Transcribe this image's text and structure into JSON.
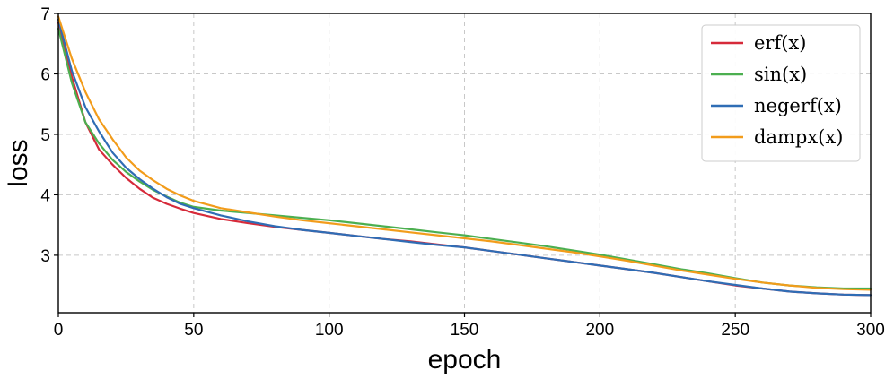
{
  "chart_data": {
    "type": "line",
    "xlabel": "epoch",
    "ylabel": "loss",
    "xlim": [
      0,
      300
    ],
    "ylim": [
      2.05,
      7
    ],
    "xticks": [
      0,
      50,
      100,
      150,
      200,
      250,
      300
    ],
    "yticks": [
      3,
      4,
      5,
      6,
      7
    ],
    "grid": true,
    "legend_position": "top-right",
    "x": [
      0,
      5,
      10,
      15,
      20,
      25,
      30,
      35,
      40,
      45,
      50,
      60,
      70,
      80,
      90,
      100,
      110,
      120,
      130,
      140,
      150,
      160,
      170,
      180,
      190,
      200,
      210,
      220,
      230,
      240,
      250,
      260,
      270,
      280,
      290,
      300
    ],
    "series": [
      {
        "name": "erf(x)",
        "color": "#d62a3a",
        "values": [
          6.85,
          5.95,
          5.2,
          4.75,
          4.5,
          4.28,
          4.1,
          3.95,
          3.85,
          3.77,
          3.7,
          3.6,
          3.53,
          3.47,
          3.42,
          3.37,
          3.32,
          3.27,
          3.23,
          3.18,
          3.13,
          3.07,
          3.01,
          2.95,
          2.89,
          2.83,
          2.77,
          2.71,
          2.64,
          2.57,
          2.5,
          2.45,
          2.4,
          2.37,
          2.35,
          2.34
        ]
      },
      {
        "name": "sin(x)",
        "color": "#4caf50",
        "values": [
          6.75,
          5.85,
          5.2,
          4.85,
          4.58,
          4.38,
          4.22,
          4.08,
          3.97,
          3.87,
          3.8,
          3.74,
          3.7,
          3.66,
          3.62,
          3.58,
          3.53,
          3.48,
          3.43,
          3.38,
          3.33,
          3.27,
          3.21,
          3.15,
          3.08,
          3.01,
          2.93,
          2.85,
          2.77,
          2.7,
          2.62,
          2.55,
          2.5,
          2.47,
          2.45,
          2.45
        ]
      },
      {
        "name": "negerf(x)",
        "color": "#2f6db5",
        "values": [
          6.9,
          6.05,
          5.45,
          5.05,
          4.7,
          4.45,
          4.26,
          4.1,
          3.96,
          3.85,
          3.78,
          3.66,
          3.56,
          3.48,
          3.42,
          3.37,
          3.32,
          3.27,
          3.22,
          3.17,
          3.13,
          3.07,
          3.01,
          2.95,
          2.89,
          2.83,
          2.77,
          2.71,
          2.64,
          2.57,
          2.51,
          2.45,
          2.4,
          2.37,
          2.35,
          2.34
        ]
      },
      {
        "name": "dampx(x)",
        "color": "#f29c1b",
        "values": [
          6.95,
          6.25,
          5.7,
          5.25,
          4.92,
          4.62,
          4.4,
          4.24,
          4.1,
          3.99,
          3.9,
          3.78,
          3.71,
          3.64,
          3.58,
          3.53,
          3.48,
          3.43,
          3.38,
          3.33,
          3.28,
          3.23,
          3.17,
          3.11,
          3.05,
          2.98,
          2.91,
          2.83,
          2.75,
          2.68,
          2.61,
          2.55,
          2.5,
          2.46,
          2.44,
          2.43
        ]
      }
    ]
  }
}
